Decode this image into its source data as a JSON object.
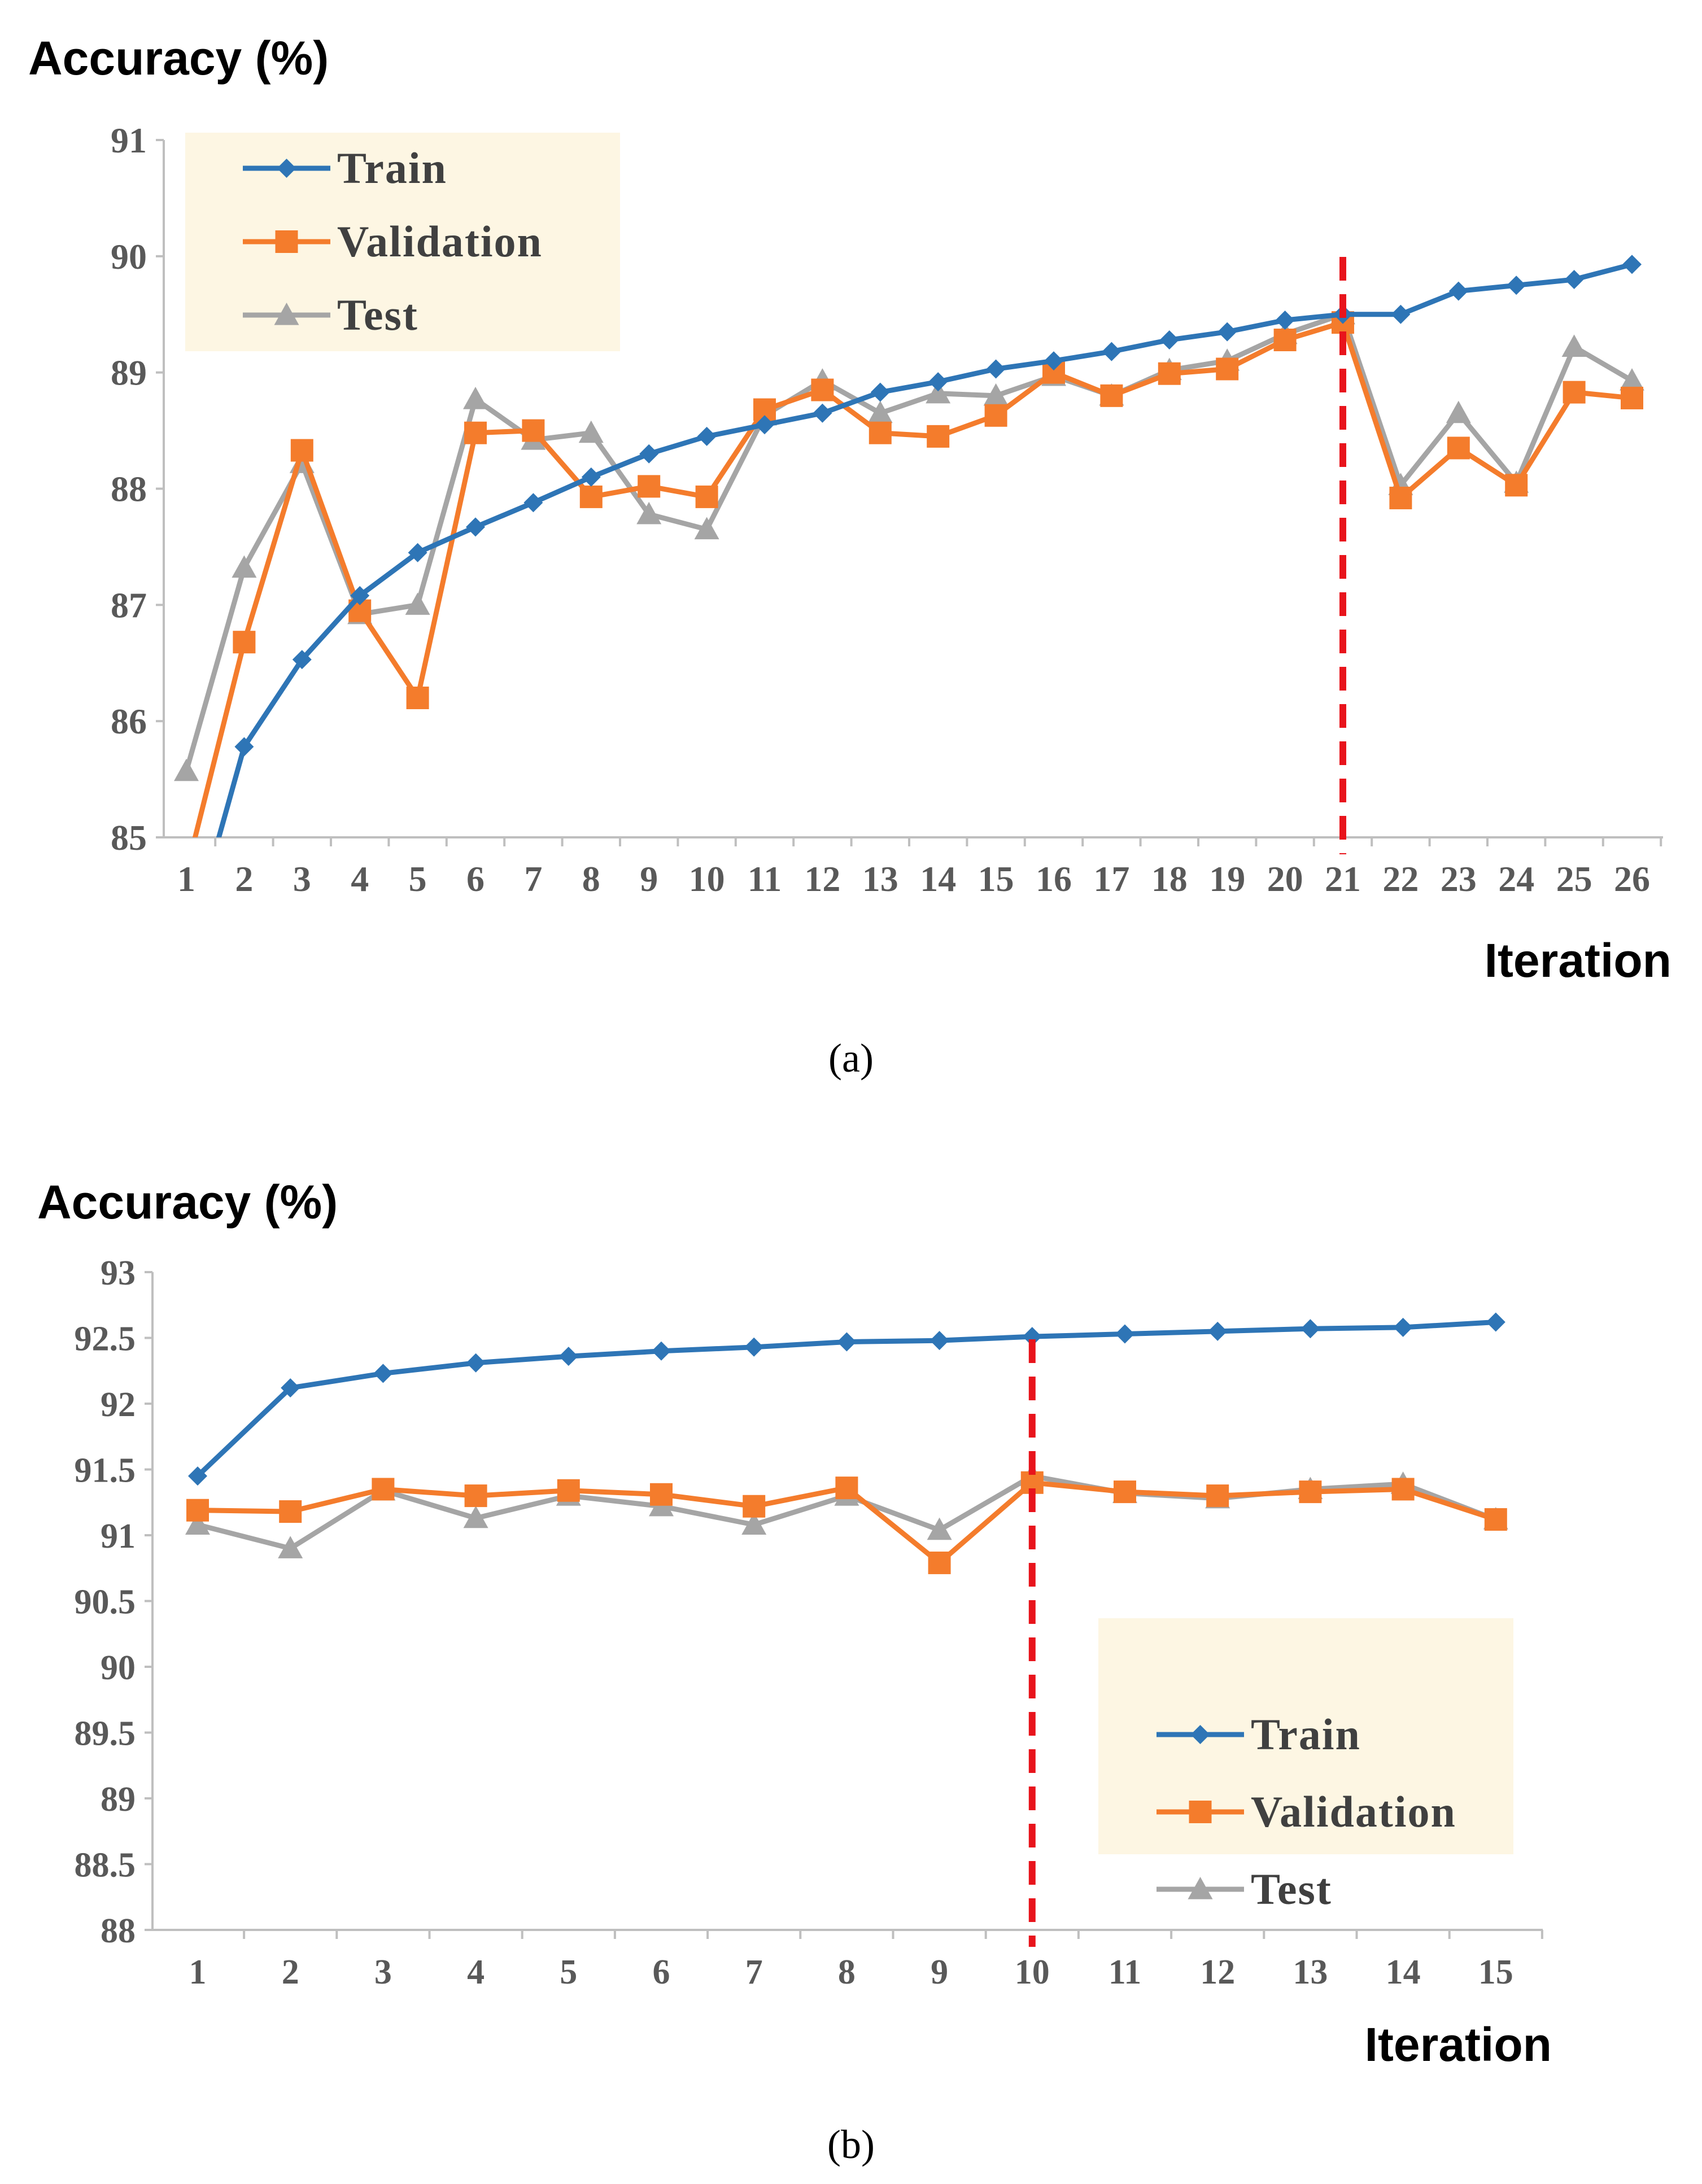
{
  "chart_data": [
    {
      "type": "line",
      "ylabel": "Accuracy (%)",
      "xlabel": "Iteration",
      "caption": "(a)",
      "categories": [
        "1",
        "2",
        "3",
        "4",
        "5",
        "6",
        "7",
        "8",
        "9",
        "10",
        "11",
        "12",
        "13",
        "14",
        "15",
        "16",
        "17",
        "18",
        "19",
        "20",
        "21",
        "22",
        "23",
        "24",
        "25",
        "26"
      ],
      "ylim": [
        85,
        91
      ],
      "yticks": [
        "85",
        "86",
        "87",
        "88",
        "89",
        "90",
        "91"
      ],
      "grid": false,
      "legend": "top-left",
      "marker_line_iteration": 21,
      "series": [
        {
          "name": "Train",
          "color": "#2E75B6",
          "marker": "diamond",
          "values": [
            84.0,
            85.78,
            86.53,
            87.08,
            87.45,
            87.67,
            87.88,
            88.1,
            88.3,
            88.45,
            88.55,
            88.65,
            88.83,
            88.92,
            89.03,
            89.1,
            89.18,
            89.28,
            89.35,
            89.45,
            89.5,
            89.5,
            89.7,
            89.75,
            89.8,
            89.93
          ]
        },
        {
          "name": "Validation",
          "color": "#F47C2C",
          "marker": "square",
          "values": [
            84.7,
            86.68,
            88.33,
            86.95,
            86.2,
            88.48,
            88.5,
            87.93,
            88.02,
            87.93,
            88.68,
            88.85,
            88.48,
            88.45,
            88.63,
            89.0,
            88.8,
            88.99,
            89.03,
            89.28,
            89.43,
            87.92,
            88.35,
            88.03,
            88.83,
            88.78
          ]
        },
        {
          "name": "Test",
          "color": "#A5A5A5",
          "marker": "triangle",
          "values": [
            85.57,
            87.32,
            88.22,
            86.92,
            87.0,
            88.77,
            88.42,
            88.48,
            87.78,
            87.65,
            88.63,
            88.93,
            88.65,
            88.82,
            88.8,
            88.97,
            88.8,
            89.02,
            89.1,
            89.33,
            89.5,
            88.03,
            88.65,
            88.05,
            89.22,
            88.93
          ]
        }
      ]
    },
    {
      "type": "line",
      "ylabel": "Accuracy (%)",
      "xlabel": "Iteration",
      "caption": "(b)",
      "categories": [
        "1",
        "2",
        "3",
        "4",
        "5",
        "6",
        "7",
        "8",
        "9",
        "10",
        "11",
        "12",
        "13",
        "14",
        "15"
      ],
      "ylim": [
        88,
        93
      ],
      "yticks": [
        "88",
        "88.5",
        "89",
        "89.5",
        "90",
        "90.5",
        "91",
        "91.5",
        "92",
        "92.5",
        "93"
      ],
      "grid": false,
      "legend": "bottom-right",
      "marker_line_iteration": 10,
      "series": [
        {
          "name": "Train",
          "color": "#2E75B6",
          "marker": "diamond",
          "values": [
            91.45,
            92.12,
            92.23,
            92.31,
            92.36,
            92.4,
            92.43,
            92.47,
            92.48,
            92.51,
            92.53,
            92.55,
            92.57,
            92.58,
            92.62
          ]
        },
        {
          "name": "Validation",
          "color": "#F47C2C",
          "marker": "square",
          "values": [
            91.19,
            91.18,
            91.35,
            91.3,
            91.34,
            91.31,
            91.22,
            91.36,
            90.79,
            91.4,
            91.33,
            91.3,
            91.33,
            91.35,
            91.12
          ]
        },
        {
          "name": "Test",
          "color": "#A5A5A5",
          "marker": "triangle",
          "values": [
            91.08,
            90.9,
            91.34,
            91.13,
            91.3,
            91.22,
            91.08,
            91.3,
            91.04,
            91.45,
            91.32,
            91.28,
            91.35,
            91.39,
            91.12
          ]
        }
      ]
    }
  ],
  "colors": {
    "marker_line": "#E8141C",
    "legend_background": "#FDF6E3",
    "axis": "#BFBFBF"
  }
}
